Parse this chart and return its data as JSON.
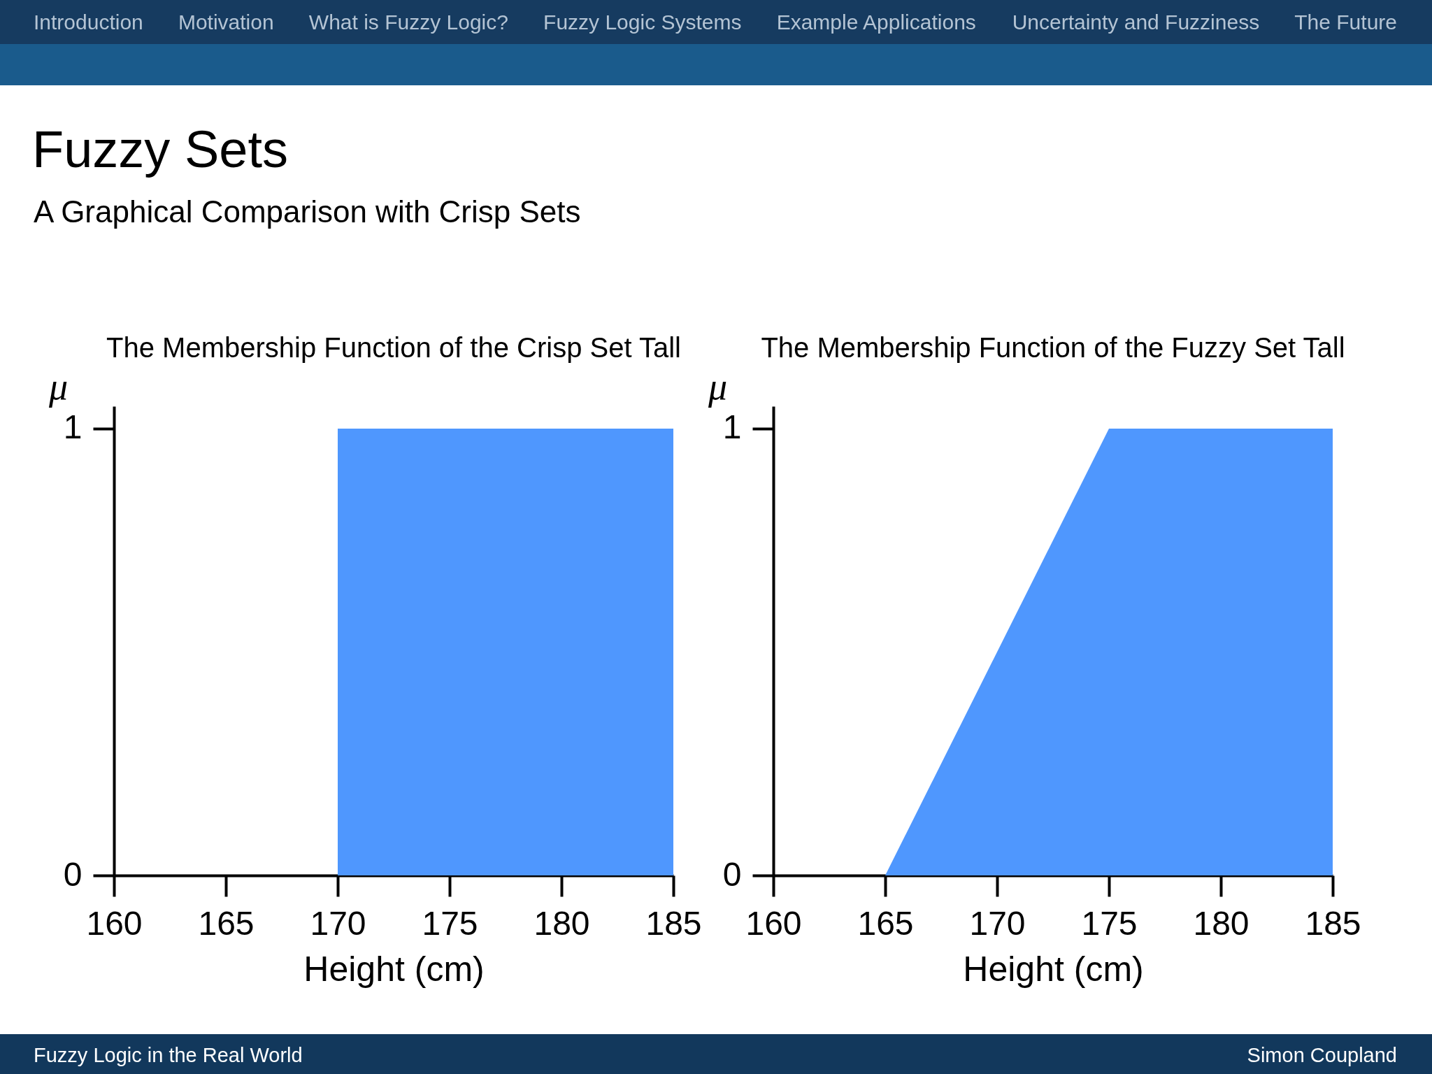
{
  "chart_data": [
    {
      "type": "other",
      "title": "Fuzzy Sets",
      "subtitle": "A Graphical Comparison with Crisp Sets",
      "categories": [
        "Introduction",
        "Motivation",
        "What is Fuzzy Logic?",
        "Fuzzy Logic Systems",
        "Example Applications",
        "Uncertainty and Fuzziness",
        "The Future"
      ]
    },
    {
      "type": "area",
      "title": "The Membership Function of the Crisp Set Tall",
      "xlabel": "Height (cm)",
      "ylabel": "μ",
      "x": [
        170,
        185
      ],
      "values": [
        1,
        1
      ],
      "color": "#4f97fe",
      "xlim": [
        160,
        185
      ],
      "xticks": [
        160,
        165,
        170,
        175,
        180,
        185
      ],
      "ylim": [
        0,
        1.05
      ],
      "yticks": [
        0,
        1
      ]
    },
    {
      "type": "area",
      "title": "The Membership Function of the Fuzzy Set Tall",
      "xlabel": "Height (cm)",
      "ylabel": "μ",
      "x": [
        165,
        175,
        185
      ],
      "values": [
        0,
        1,
        1
      ],
      "color": "#4f97fe",
      "xlim": [
        160,
        185
      ],
      "xticks": [
        160,
        165,
        170,
        175,
        180,
        185
      ],
      "ylim": [
        0,
        1.05
      ],
      "yticks": [
        0,
        1
      ]
    },
    {
      "type": "other",
      "annotations": [
        "Fuzzy Logic in the Real World",
        "Simon Coupland"
      ]
    }
  ]
}
